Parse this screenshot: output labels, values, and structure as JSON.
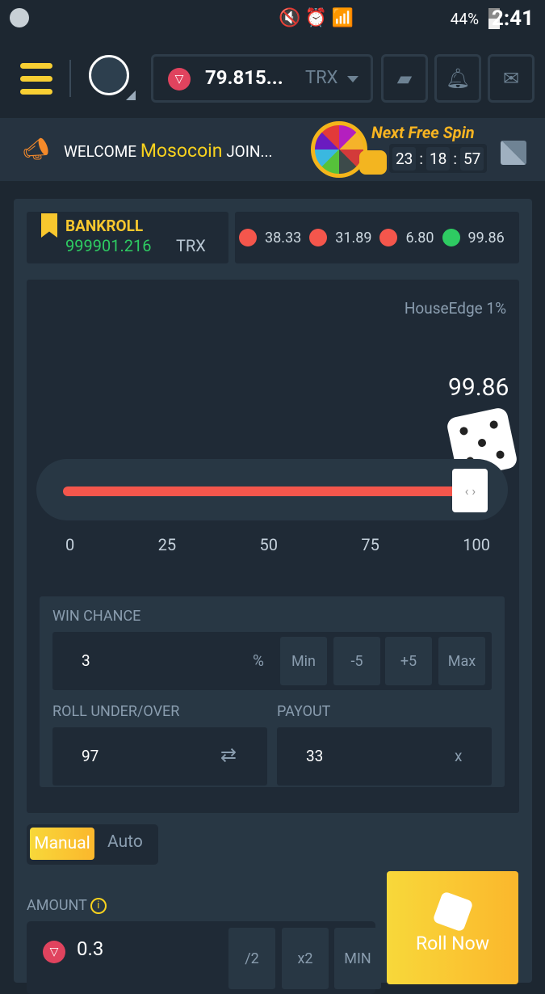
{
  "status_bar": {
    "battery": "44%",
    "time": "2:41"
  },
  "header": {
    "balance": "79.815...",
    "currency": "TRX"
  },
  "banner": {
    "welcome_prefix": "WELCOME",
    "username": "Mosocoin",
    "welcome_suffix": "JOIN...",
    "next_free_spin": "Next Free Spin",
    "timer": {
      "hours": "23",
      "minutes": "18",
      "seconds": "57"
    }
  },
  "bankroll": {
    "label": "BANKROLL",
    "amount": "999901.216",
    "currency": "TRX"
  },
  "history": [
    {
      "value": "38.33",
      "color": "#f4564c"
    },
    {
      "value": "31.89",
      "color": "#f4564c"
    },
    {
      "value": "6.80",
      "color": "#f4564c"
    },
    {
      "value": "99.86",
      "color": "#2ecb62"
    }
  ],
  "game": {
    "house_edge": "HouseEdge 1%",
    "roll_result": "99.86",
    "slider_value": 97,
    "ticks": [
      "0",
      "25",
      "50",
      "75",
      "100"
    ]
  },
  "controls": {
    "win_chance_label": "WIN CHANCE",
    "win_chance": "3",
    "percent": "%",
    "buttons": [
      "Min",
      "-5",
      "+5",
      "Max"
    ],
    "roll_label": "ROLL UNDER/OVER",
    "roll_value": "97",
    "payout_label": "PAYOUT",
    "payout_value": "33",
    "payout_unit": "x"
  },
  "modes": {
    "manual": "Manual",
    "auto": "Auto"
  },
  "amount": {
    "label": "AMOUNT",
    "info": "i",
    "value": "0.3",
    "buttons": [
      "/2",
      "x2",
      "MIN"
    ]
  },
  "roll_button": "Roll Now"
}
